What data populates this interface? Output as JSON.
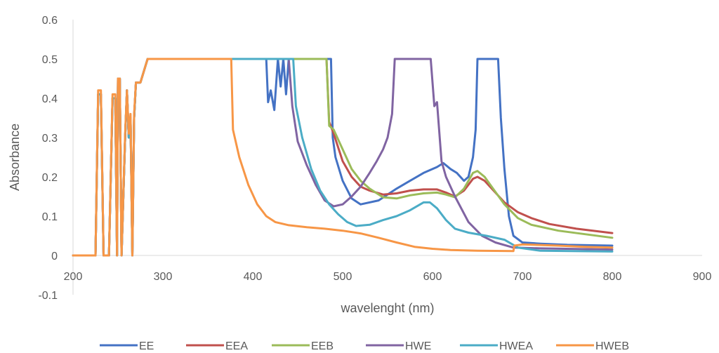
{
  "chart_data": {
    "type": "line",
    "title": "",
    "xlabel": "wavelenght (nm)",
    "ylabel": "Absorbance",
    "xlim": [
      200,
      900
    ],
    "ylim": [
      -0.1,
      0.6
    ],
    "xticks": [
      200,
      300,
      400,
      500,
      600,
      700,
      800,
      900
    ],
    "yticks": [
      -0.1,
      0,
      0.1,
      0.2,
      0.3,
      0.4,
      0.5,
      0.6
    ],
    "xtick_labels": [
      "200",
      "300",
      "400",
      "500",
      "600",
      "700",
      "800",
      "900"
    ],
    "ytick_labels": [
      "-0.1",
      "0",
      "0.1",
      "0.2",
      "0.3",
      "0.4",
      "0.5",
      "0.6"
    ],
    "grid": false,
    "legend_position": "bottom",
    "series": [
      {
        "name": "EE",
        "color": "#4472C4",
        "points": [
          [
            200,
            0
          ],
          [
            225,
            0
          ],
          [
            228,
            0.41
          ],
          [
            231,
            0.41
          ],
          [
            234,
            0
          ],
          [
            240,
            0
          ],
          [
            244,
            0.4
          ],
          [
            247,
            0.4
          ],
          [
            249,
            0
          ],
          [
            250,
            0.45
          ],
          [
            252,
            0.45
          ],
          [
            254,
            0
          ],
          [
            258,
            0.3
          ],
          [
            260,
            0.42
          ],
          [
            262,
            0.3
          ],
          [
            264,
            0.35
          ],
          [
            266,
            0
          ],
          [
            268,
            0.35
          ],
          [
            270,
            0.44
          ],
          [
            275,
            0.44
          ],
          [
            283,
            0.5
          ],
          [
            415,
            0.5
          ],
          [
            417,
            0.39
          ],
          [
            420,
            0.42
          ],
          [
            424,
            0.37
          ],
          [
            428,
            0.5
          ],
          [
            431,
            0.43
          ],
          [
            434,
            0.5
          ],
          [
            437,
            0.41
          ],
          [
            440,
            0.5
          ],
          [
            487,
            0.5
          ],
          [
            489,
            0.3
          ],
          [
            492,
            0.25
          ],
          [
            500,
            0.19
          ],
          [
            510,
            0.145
          ],
          [
            520,
            0.13
          ],
          [
            540,
            0.14
          ],
          [
            560,
            0.17
          ],
          [
            575,
            0.19
          ],
          [
            590,
            0.21
          ],
          [
            605,
            0.225
          ],
          [
            612,
            0.235
          ],
          [
            620,
            0.22
          ],
          [
            627,
            0.21
          ],
          [
            635,
            0.19
          ],
          [
            640,
            0.2
          ],
          [
            645,
            0.25
          ],
          [
            648,
            0.32
          ],
          [
            650,
            0.5
          ],
          [
            673,
            0.5
          ],
          [
            676,
            0.35
          ],
          [
            680,
            0.22
          ],
          [
            685,
            0.1
          ],
          [
            690,
            0.05
          ],
          [
            700,
            0.033
          ],
          [
            720,
            0.03
          ],
          [
            750,
            0.027
          ],
          [
            800,
            0.025
          ]
        ]
      },
      {
        "name": "EEA",
        "color": "#C0504D",
        "points": [
          [
            200,
            0
          ],
          [
            225,
            0
          ],
          [
            228,
            0.41
          ],
          [
            231,
            0.41
          ],
          [
            234,
            0
          ],
          [
            240,
            0
          ],
          [
            244,
            0.4
          ],
          [
            247,
            0.4
          ],
          [
            249,
            0
          ],
          [
            250,
            0.45
          ],
          [
            252,
            0.45
          ],
          [
            254,
            0
          ],
          [
            258,
            0.3
          ],
          [
            260,
            0.42
          ],
          [
            262,
            0.3
          ],
          [
            264,
            0.35
          ],
          [
            266,
            0
          ],
          [
            268,
            0.35
          ],
          [
            270,
            0.44
          ],
          [
            275,
            0.44
          ],
          [
            283,
            0.5
          ],
          [
            482,
            0.5
          ],
          [
            485,
            0.34
          ],
          [
            490,
            0.31
          ],
          [
            500,
            0.24
          ],
          [
            510,
            0.2
          ],
          [
            520,
            0.175
          ],
          [
            530,
            0.165
          ],
          [
            545,
            0.155
          ],
          [
            560,
            0.158
          ],
          [
            575,
            0.165
          ],
          [
            590,
            0.168
          ],
          [
            605,
            0.168
          ],
          [
            615,
            0.16
          ],
          [
            625,
            0.15
          ],
          [
            635,
            0.165
          ],
          [
            645,
            0.195
          ],
          [
            650,
            0.2
          ],
          [
            658,
            0.19
          ],
          [
            668,
            0.165
          ],
          [
            680,
            0.135
          ],
          [
            695,
            0.11
          ],
          [
            710,
            0.095
          ],
          [
            730,
            0.08
          ],
          [
            760,
            0.068
          ],
          [
            800,
            0.057
          ]
        ]
      },
      {
        "name": "EEB",
        "color": "#9BBB59",
        "points": [
          [
            200,
            0
          ],
          [
            225,
            0
          ],
          [
            228,
            0.41
          ],
          [
            231,
            0.41
          ],
          [
            234,
            0
          ],
          [
            240,
            0
          ],
          [
            244,
            0.4
          ],
          [
            247,
            0.4
          ],
          [
            249,
            0
          ],
          [
            250,
            0.45
          ],
          [
            252,
            0.45
          ],
          [
            254,
            0
          ],
          [
            258,
            0.3
          ],
          [
            260,
            0.42
          ],
          [
            262,
            0.3
          ],
          [
            264,
            0.35
          ],
          [
            266,
            0
          ],
          [
            268,
            0.35
          ],
          [
            270,
            0.44
          ],
          [
            275,
            0.44
          ],
          [
            283,
            0.5
          ],
          [
            482,
            0.5
          ],
          [
            485,
            0.33
          ],
          [
            490,
            0.32
          ],
          [
            500,
            0.27
          ],
          [
            510,
            0.22
          ],
          [
            520,
            0.19
          ],
          [
            530,
            0.17
          ],
          [
            545,
            0.148
          ],
          [
            560,
            0.145
          ],
          [
            575,
            0.153
          ],
          [
            590,
            0.158
          ],
          [
            605,
            0.16
          ],
          [
            615,
            0.155
          ],
          [
            625,
            0.148
          ],
          [
            635,
            0.17
          ],
          [
            645,
            0.21
          ],
          [
            650,
            0.215
          ],
          [
            658,
            0.2
          ],
          [
            668,
            0.168
          ],
          [
            680,
            0.13
          ],
          [
            695,
            0.095
          ],
          [
            710,
            0.078
          ],
          [
            740,
            0.063
          ],
          [
            800,
            0.045
          ]
        ]
      },
      {
        "name": "HWE",
        "color": "#8064A2",
        "points": [
          [
            200,
            0
          ],
          [
            225,
            0
          ],
          [
            228,
            0.41
          ],
          [
            231,
            0.41
          ],
          [
            234,
            0
          ],
          [
            240,
            0
          ],
          [
            244,
            0.4
          ],
          [
            247,
            0.4
          ],
          [
            249,
            0
          ],
          [
            250,
            0.45
          ],
          [
            252,
            0.45
          ],
          [
            254,
            0
          ],
          [
            258,
            0.3
          ],
          [
            260,
            0.42
          ],
          [
            262,
            0.3
          ],
          [
            264,
            0.35
          ],
          [
            266,
            0
          ],
          [
            268,
            0.35
          ],
          [
            270,
            0.44
          ],
          [
            275,
            0.44
          ],
          [
            283,
            0.5
          ],
          [
            440,
            0.5
          ],
          [
            444,
            0.38
          ],
          [
            450,
            0.29
          ],
          [
            460,
            0.23
          ],
          [
            470,
            0.18
          ],
          [
            480,
            0.14
          ],
          [
            490,
            0.125
          ],
          [
            500,
            0.13
          ],
          [
            510,
            0.15
          ],
          [
            520,
            0.175
          ],
          [
            530,
            0.21
          ],
          [
            538,
            0.24
          ],
          [
            545,
            0.27
          ],
          [
            550,
            0.3
          ],
          [
            555,
            0.36
          ],
          [
            558,
            0.5
          ],
          [
            598,
            0.5
          ],
          [
            602,
            0.38
          ],
          [
            605,
            0.39
          ],
          [
            610,
            0.24
          ],
          [
            615,
            0.2
          ],
          [
            625,
            0.15
          ],
          [
            640,
            0.085
          ],
          [
            655,
            0.05
          ],
          [
            670,
            0.033
          ],
          [
            690,
            0.02
          ],
          [
            720,
            0.018
          ],
          [
            800,
            0.015
          ]
        ]
      },
      {
        "name": "HWEA",
        "color": "#4BACC6",
        "points": [
          [
            200,
            0
          ],
          [
            225,
            0
          ],
          [
            228,
            0.41
          ],
          [
            231,
            0.41
          ],
          [
            234,
            0
          ],
          [
            240,
            0
          ],
          [
            244,
            0.4
          ],
          [
            247,
            0.4
          ],
          [
            249,
            0
          ],
          [
            250,
            0.45
          ],
          [
            252,
            0.45
          ],
          [
            254,
            0
          ],
          [
            258,
            0.3
          ],
          [
            260,
            0.42
          ],
          [
            262,
            0.3
          ],
          [
            264,
            0.35
          ],
          [
            266,
            0
          ],
          [
            268,
            0.35
          ],
          [
            270,
            0.44
          ],
          [
            275,
            0.44
          ],
          [
            283,
            0.5
          ],
          [
            445,
            0.5
          ],
          [
            448,
            0.38
          ],
          [
            455,
            0.3
          ],
          [
            465,
            0.22
          ],
          [
            475,
            0.165
          ],
          [
            485,
            0.13
          ],
          [
            495,
            0.105
          ],
          [
            505,
            0.085
          ],
          [
            515,
            0.075
          ],
          [
            530,
            0.078
          ],
          [
            545,
            0.09
          ],
          [
            560,
            0.1
          ],
          [
            575,
            0.115
          ],
          [
            590,
            0.135
          ],
          [
            597,
            0.135
          ],
          [
            605,
            0.12
          ],
          [
            615,
            0.09
          ],
          [
            625,
            0.068
          ],
          [
            640,
            0.058
          ],
          [
            660,
            0.05
          ],
          [
            680,
            0.04
          ],
          [
            695,
            0.02
          ],
          [
            720,
            0.012
          ],
          [
            800,
            0.01
          ]
        ]
      },
      {
        "name": "HWEB",
        "color": "#F79646",
        "points": [
          [
            200,
            0
          ],
          [
            225,
            0
          ],
          [
            228,
            0.42
          ],
          [
            231,
            0.42
          ],
          [
            234,
            0
          ],
          [
            240,
            0
          ],
          [
            244,
            0.41
          ],
          [
            247,
            0.41
          ],
          [
            249,
            0
          ],
          [
            250,
            0.45
          ],
          [
            252,
            0.45
          ],
          [
            254,
            0
          ],
          [
            258,
            0.31
          ],
          [
            260,
            0.42
          ],
          [
            262,
            0.31
          ],
          [
            264,
            0.36
          ],
          [
            266,
            0
          ],
          [
            268,
            0.36
          ],
          [
            270,
            0.44
          ],
          [
            275,
            0.44
          ],
          [
            283,
            0.5
          ],
          [
            376,
            0.5
          ],
          [
            378,
            0.32
          ],
          [
            385,
            0.25
          ],
          [
            395,
            0.18
          ],
          [
            405,
            0.13
          ],
          [
            415,
            0.1
          ],
          [
            425,
            0.085
          ],
          [
            440,
            0.077
          ],
          [
            460,
            0.072
          ],
          [
            480,
            0.068
          ],
          [
            500,
            0.063
          ],
          [
            520,
            0.056
          ],
          [
            540,
            0.045
          ],
          [
            560,
            0.033
          ],
          [
            580,
            0.022
          ],
          [
            600,
            0.017
          ],
          [
            620,
            0.014
          ],
          [
            650,
            0.012
          ],
          [
            690,
            0.011
          ],
          [
            691,
            0.025
          ],
          [
            700,
            0.028
          ],
          [
            740,
            0.025
          ],
          [
            770,
            0.022
          ],
          [
            800,
            0.02
          ]
        ]
      }
    ]
  }
}
